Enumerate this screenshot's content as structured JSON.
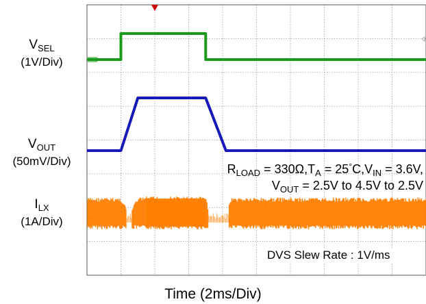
{
  "chart_data": {
    "type": "line",
    "title": "",
    "xlabel": "Time (2ms/Div)",
    "x_unit": "ms",
    "x_per_div": 2,
    "x_divisions": 10,
    "y_divisions": 8,
    "grid": true,
    "trigger_marker_x_ms": 4,
    "channels": [
      {
        "name_main": "V",
        "name_sub": "SEL",
        "scale": "(1V/Div)",
        "color": "#1a9a1a",
        "unit": "V",
        "x": [
          0,
          2,
          2,
          7,
          7,
          20
        ],
        "y": [
          0,
          0,
          1,
          1,
          0,
          0
        ]
      },
      {
        "name_main": "V",
        "name_sub": "OUT",
        "scale": "(50mV/Div)",
        "color": "#1818b8",
        "unit": "V",
        "x": [
          0,
          2,
          3,
          7,
          8.2,
          20
        ],
        "y": [
          2.5,
          2.5,
          4.5,
          4.5,
          2.5,
          2.5
        ]
      },
      {
        "name_main": "I",
        "name_sub": "LX",
        "scale": "(1A/Div)",
        "color": "#ff7f00",
        "unit": "A",
        "x": [
          0,
          2,
          2.5,
          3,
          3.5,
          7,
          7.3,
          8.2,
          8.5,
          10
        ],
        "y": [
          0.95,
          0.95,
          0.3,
          0.95,
          1.0,
          1.0,
          0.1,
          0.1,
          0.95,
          0.95
        ]
      }
    ]
  },
  "annotations": {
    "cond1_rload": "R",
    "cond1_rload_sub": "LOAD",
    "cond1_mid": " = 330Ω,T",
    "cond1_ta_sub": "A",
    "cond1_temp": " = 25",
    "cond1_deg": "°",
    "cond1_c": "C,V",
    "cond1_vin_sub": "IN",
    "cond1_end": " = 3.6V,",
    "cond2_v": "V",
    "cond2_sub": "OUT",
    "cond2_end": " = 2.5V to 4.5V to 2.5V",
    "slew": "DVS Slew Rate : 1V/ms"
  }
}
